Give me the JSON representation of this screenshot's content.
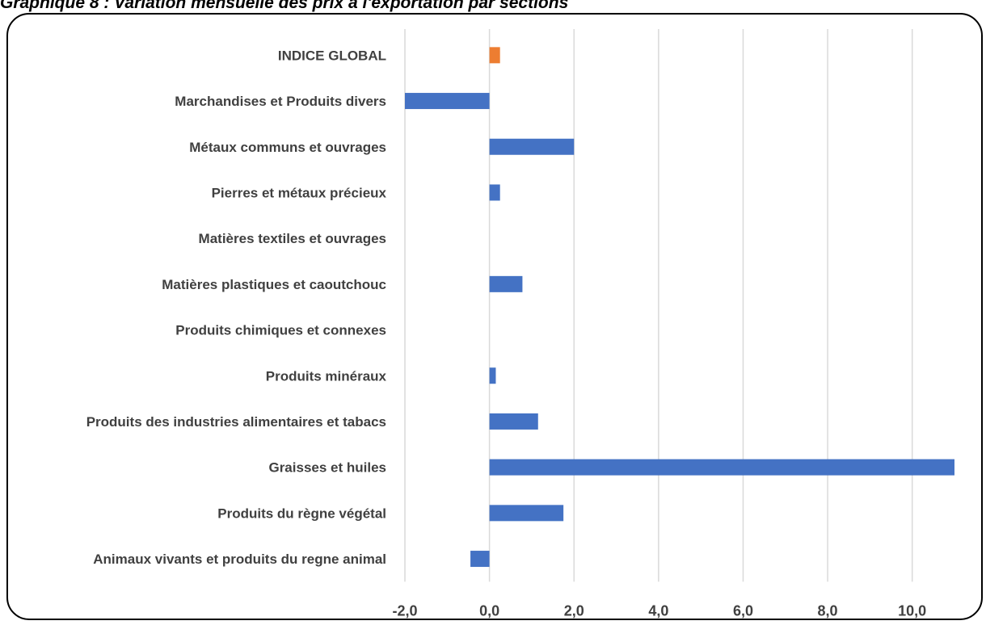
{
  "title": "Graphique 8 : Variation mensuelle des prix à l'exportation par sections",
  "chart_data": {
    "type": "bar",
    "orientation": "horizontal",
    "title": "Graphique 8 : Variation mensuelle des prix à l'exportation par sections",
    "xlabel": "",
    "ylabel": "",
    "xlim": [
      -2.0,
      11.0
    ],
    "x_ticks": [
      -2.0,
      0.0,
      2.0,
      4.0,
      6.0,
      8.0,
      10.0
    ],
    "x_tick_labels": [
      "-2,0",
      "0,0",
      "2,0",
      "4,0",
      "6,0",
      "8,0",
      "10,0"
    ],
    "grid": true,
    "legend": "none",
    "categories": [
      "INDICE GLOBAL",
      "Marchandises et Produits divers",
      "Métaux communs et ouvrages",
      "Pierres et métaux précieux",
      "Matières textiles et ouvrages",
      "Matières plastiques et caoutchouc",
      "Produits chimiques et connexes",
      "Produits minéraux",
      "Produits des industries alimentaires et tabacs",
      "Graisses et huiles",
      "Produits du règne végétal",
      "Animaux vivants et produits du regne animal"
    ],
    "values": [
      0.25,
      -2.0,
      2.0,
      0.25,
      0.0,
      0.78,
      0.0,
      0.15,
      1.15,
      11.0,
      1.75,
      -0.45
    ],
    "colors": {
      "highlight": "#ED7D31",
      "default": "#4472C4",
      "grid": "#D9D9D9"
    },
    "highlight_category": "INDICE GLOBAL"
  }
}
